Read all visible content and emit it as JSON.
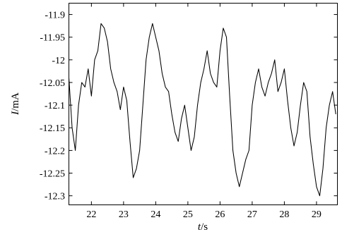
{
  "chart_data": {
    "type": "line",
    "xlabel": "t/s",
    "ylabel": "I/mA",
    "xlabel_var": "t",
    "xlabel_unit": "/s",
    "ylabel_var": "I",
    "ylabel_unit": "/mA",
    "xlim": [
      21.3,
      29.65
    ],
    "ylim": [
      -12.32,
      -11.875
    ],
    "x_ticks": [
      22,
      23,
      24,
      25,
      26,
      27,
      28,
      29
    ],
    "x_tick_labels": [
      "22",
      "23",
      "24",
      "25",
      "26",
      "27",
      "28",
      "29"
    ],
    "y_ticks": [
      -11.9,
      -11.95,
      -12,
      -12.05,
      -12.1,
      -12.15,
      -12.2,
      -12.25,
      -12.3
    ],
    "y_tick_labels": [
      "-11.9",
      "-11.95",
      "-12",
      "-12.05",
      "-12.1",
      "-12.15",
      "-12.2",
      "-12.25",
      "-12.3"
    ],
    "grid": false,
    "series": [
      {
        "x": [
          21.3,
          21.4,
          21.5,
          21.6,
          21.7,
          21.8,
          21.9,
          22.0,
          22.1,
          22.2,
          22.3,
          22.4,
          22.5,
          22.6,
          22.7,
          22.8,
          22.9,
          23.0,
          23.1,
          23.2,
          23.3,
          23.4,
          23.5,
          23.6,
          23.7,
          23.8,
          23.9,
          24.0,
          24.1,
          24.2,
          24.3,
          24.4,
          24.5,
          24.6,
          24.7,
          24.8,
          24.9,
          25.0,
          25.1,
          25.2,
          25.3,
          25.4,
          25.5,
          25.6,
          25.7,
          25.8,
          25.9,
          26.0,
          26.1,
          26.2,
          26.3,
          26.4,
          26.5,
          26.6,
          26.7,
          26.8,
          26.9,
          27.0,
          27.1,
          27.2,
          27.3,
          27.4,
          27.5,
          27.6,
          27.7,
          27.8,
          27.9,
          28.0,
          28.1,
          28.2,
          28.3,
          28.4,
          28.5,
          28.6,
          28.7,
          28.8,
          28.9,
          29.0,
          29.1,
          29.2,
          29.3,
          29.4,
          29.5,
          29.6
        ],
        "values": [
          -12.04,
          -12.15,
          -12.2,
          -12.1,
          -12.05,
          -12.06,
          -12.02,
          -12.08,
          -12.0,
          -11.98,
          -11.92,
          -11.93,
          -11.96,
          -12.02,
          -12.05,
          -12.07,
          -12.11,
          -12.06,
          -12.09,
          -12.18,
          -12.26,
          -12.24,
          -12.2,
          -12.1,
          -12.0,
          -11.95,
          -11.92,
          -11.95,
          -11.98,
          -12.03,
          -12.06,
          -12.07,
          -12.12,
          -12.16,
          -12.18,
          -12.13,
          -12.1,
          -12.15,
          -12.2,
          -12.17,
          -12.1,
          -12.05,
          -12.02,
          -11.98,
          -12.03,
          -12.05,
          -12.06,
          -11.98,
          -11.93,
          -11.95,
          -12.08,
          -12.2,
          -12.25,
          -12.28,
          -12.25,
          -12.22,
          -12.2,
          -12.1,
          -12.05,
          -12.02,
          -12.06,
          -12.08,
          -12.05,
          -12.03,
          -12.0,
          -12.07,
          -12.05,
          -12.02,
          -12.09,
          -12.15,
          -12.19,
          -12.16,
          -12.1,
          -12.05,
          -12.07,
          -12.17,
          -12.23,
          -12.28,
          -12.3,
          -12.24,
          -12.15,
          -12.1,
          -12.07,
          -12.12
        ]
      }
    ]
  }
}
